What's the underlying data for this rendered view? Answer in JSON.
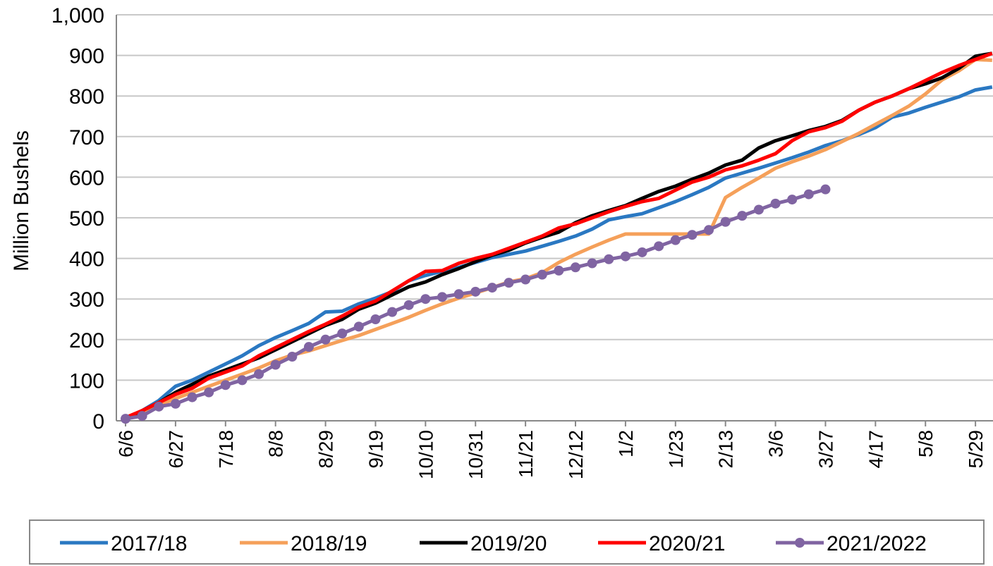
{
  "chart_data": {
    "type": "line",
    "y_label": "Million Bushels",
    "categories": [
      "6/6",
      null,
      null,
      "6/27",
      null,
      null,
      "7/18",
      null,
      null,
      "8/8",
      null,
      null,
      "8/29",
      null,
      null,
      "9/19",
      null,
      null,
      "10/10",
      null,
      null,
      "10/31",
      null,
      null,
      "11/21",
      null,
      null,
      "12/12",
      null,
      null,
      "1/2",
      null,
      null,
      "1/23",
      null,
      null,
      "2/13",
      null,
      null,
      "3/6",
      null,
      null,
      "3/27",
      null,
      null,
      "4/17",
      null,
      null,
      "5/8",
      null,
      null,
      "5/29",
      null
    ],
    "ylim": [
      0,
      1000
    ],
    "yticks": [
      0,
      100,
      200,
      300,
      400,
      500,
      600,
      700,
      800,
      900,
      {
        "value": 1000,
        "label": "1,000"
      }
    ],
    "grid": true,
    "legend": "bottom",
    "series": [
      {
        "name": "2017/18",
        "color": "#2a78c2",
        "values": [
          5,
          25,
          50,
          85,
          100,
          120,
          140,
          160,
          185,
          205,
          222,
          240,
          268,
          270,
          288,
          302,
          318,
          345,
          358,
          368,
          378,
          390,
          402,
          410,
          418,
          430,
          442,
          455,
          472,
          495,
          503,
          510,
          525,
          540,
          557,
          575,
          598,
          610,
          622,
          635,
          648,
          662,
          678,
          690,
          705,
          722,
          748,
          758,
          772,
          785,
          798,
          815,
          822
        ]
      },
      {
        "name": "2018/19",
        "color": "#f5a05a",
        "values": [
          5,
          20,
          38,
          55,
          70,
          85,
          100,
          115,
          130,
          148,
          162,
          172,
          185,
          198,
          210,
          225,
          240,
          255,
          272,
          288,
          302,
          315,
          328,
          342,
          350,
          365,
          390,
          410,
          428,
          445,
          460,
          460,
          460,
          460,
          460,
          460,
          550,
          575,
          598,
          622,
          638,
          652,
          668,
          688,
          708,
          730,
          752,
          775,
          805,
          840,
          862,
          890,
          888
        ]
      },
      {
        "name": "2019/20",
        "color": "#000000",
        "values": [
          5,
          25,
          45,
          70,
          90,
          110,
          125,
          140,
          155,
          175,
          195,
          215,
          235,
          250,
          275,
          290,
          310,
          330,
          342,
          360,
          375,
          392,
          408,
          420,
          438,
          452,
          465,
          488,
          505,
          518,
          530,
          548,
          565,
          578,
          595,
          610,
          630,
          642,
          672,
          690,
          702,
          715,
          725,
          740,
          765,
          785,
          800,
          818,
          830,
          845,
          868,
          898,
          905
        ]
      },
      {
        "name": "2020/21",
        "color": "#ff0000",
        "values": [
          8,
          25,
          45,
          65,
          80,
          105,
          120,
          135,
          160,
          180,
          200,
          220,
          238,
          258,
          280,
          295,
          320,
          345,
          368,
          370,
          388,
          400,
          410,
          425,
          440,
          455,
          475,
          485,
          500,
          515,
          528,
          540,
          548,
          568,
          588,
          600,
          618,
          628,
          642,
          658,
          690,
          712,
          722,
          738,
          765,
          785,
          800,
          818,
          838,
          858,
          875,
          890,
          905
        ]
      },
      {
        "name": "2021/2022",
        "color": "#8064a2",
        "marker": "circle",
        "values": [
          5,
          12,
          35,
          42,
          58,
          70,
          88,
          100,
          115,
          138,
          158,
          182,
          200,
          215,
          232,
          250,
          268,
          285,
          300,
          305,
          312,
          318,
          328,
          340,
          348,
          360,
          370,
          378,
          388,
          398,
          405,
          415,
          430,
          445,
          458,
          470,
          490,
          505,
          520,
          535,
          545,
          558,
          570,
          null,
          null,
          null,
          null,
          null,
          null,
          null,
          null,
          null,
          null
        ]
      }
    ]
  }
}
